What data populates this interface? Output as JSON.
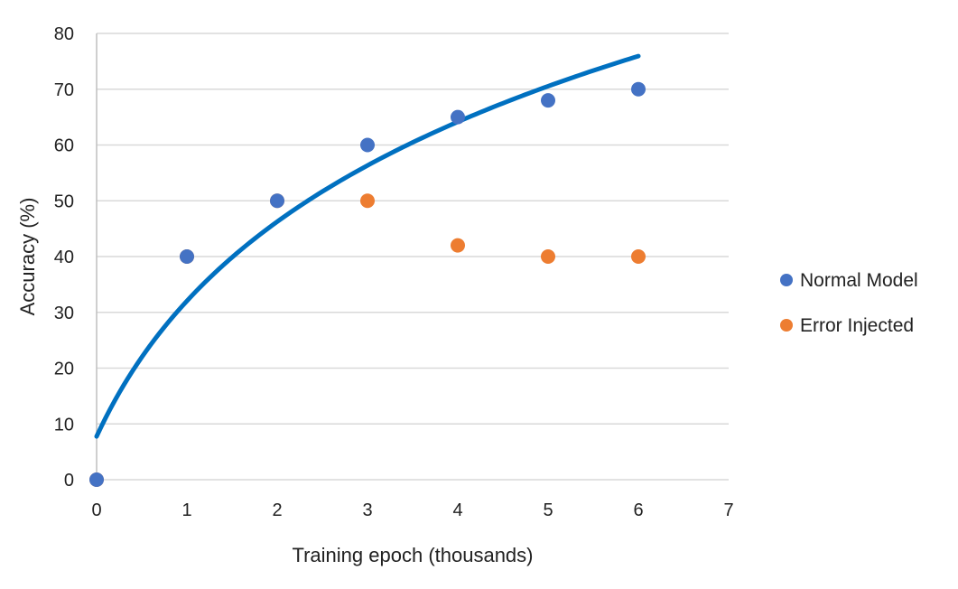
{
  "chart_data": {
    "type": "scatter",
    "title": "",
    "xlabel": "Training epoch (thousands)",
    "ylabel": "Accuracy (%)",
    "xlim": [
      0,
      7
    ],
    "ylim": [
      0,
      80
    ],
    "xticks": [
      "0",
      "1",
      "2",
      "3",
      "4",
      "5",
      "6",
      "7"
    ],
    "yticks": [
      "0",
      "10",
      "20",
      "30",
      "40",
      "50",
      "60",
      "70",
      "80"
    ],
    "grid": "horizontal",
    "legend_position": "right",
    "series": [
      {
        "name": "Normal Model",
        "color": "#4472C4",
        "x": [
          0,
          1,
          2,
          3,
          4,
          5,
          6
        ],
        "y": [
          0,
          40,
          50,
          60,
          65,
          68,
          70
        ]
      },
      {
        "name": "Error Injected",
        "color": "#ED7D31",
        "x": [
          0,
          1,
          2,
          3,
          4,
          5,
          6
        ],
        "y": [
          0,
          40,
          50,
          50,
          42,
          40,
          40
        ]
      }
    ],
    "trendline": {
      "type": "logarithmic",
      "color": "#0070C0",
      "series": "Normal Model"
    }
  }
}
